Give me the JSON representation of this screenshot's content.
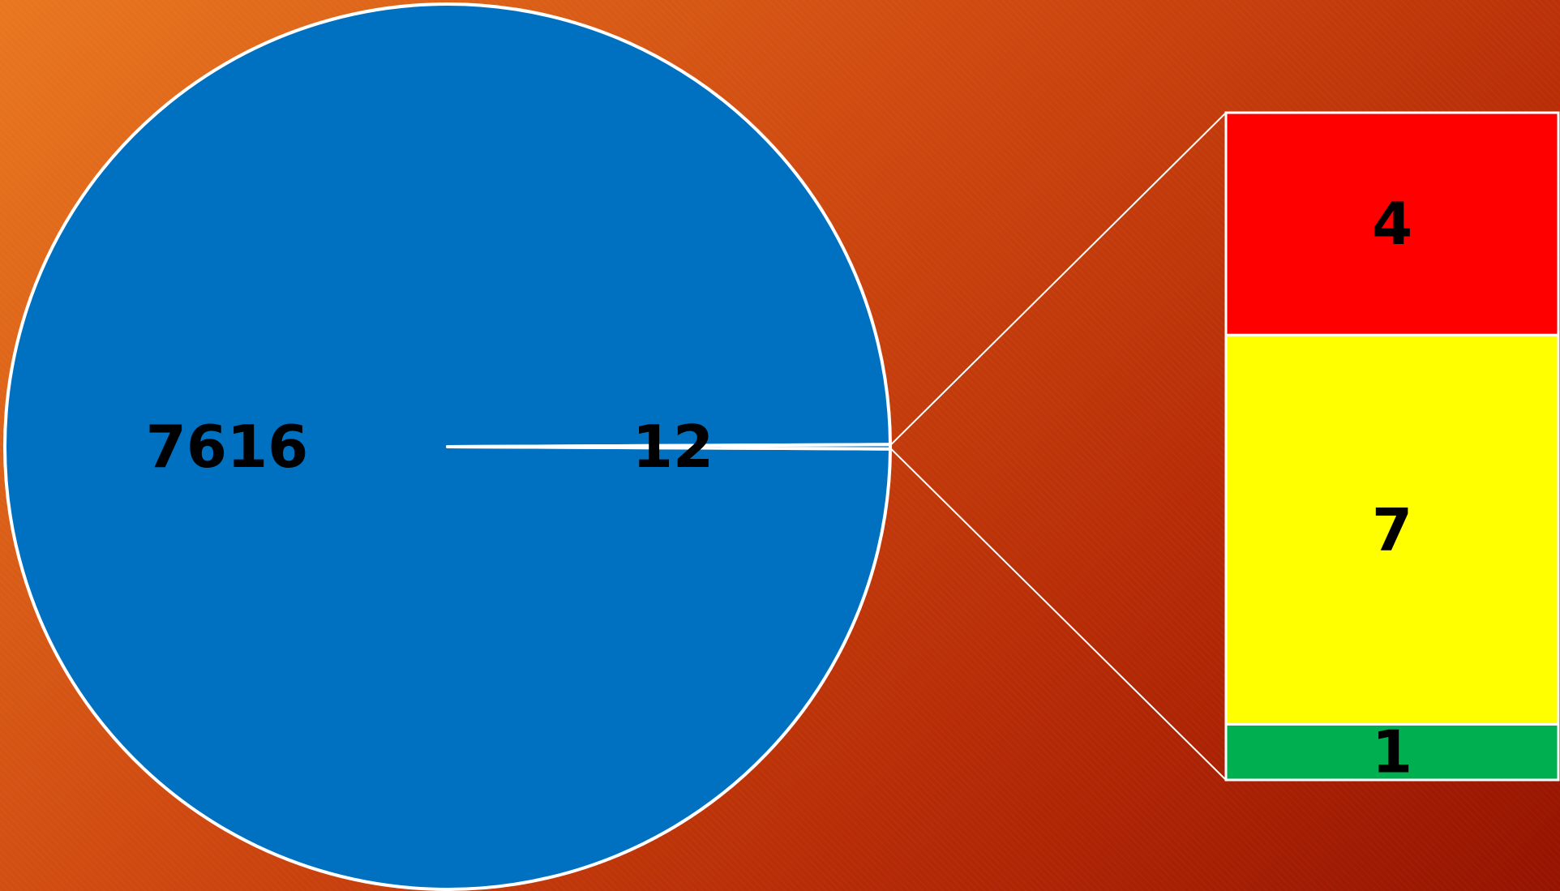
{
  "chart_data": {
    "type": "pie",
    "subtype": "bar-of-pie",
    "pie": {
      "slices": [
        {
          "label": "7616",
          "value": 7616,
          "color": "#0070c0"
        },
        {
          "label": "12",
          "value": 12,
          "color": "#0070c0"
        }
      ]
    },
    "breakdown_bar": {
      "source_slice": "12",
      "segments": [
        {
          "label": "4",
          "value": 4,
          "color": "#ff0000"
        },
        {
          "label": "7",
          "value": 7,
          "color": "#ffff00"
        },
        {
          "label": "1",
          "value": 1,
          "color": "#00b050"
        }
      ]
    },
    "outline_color": "#ffffff",
    "legend": "none"
  }
}
